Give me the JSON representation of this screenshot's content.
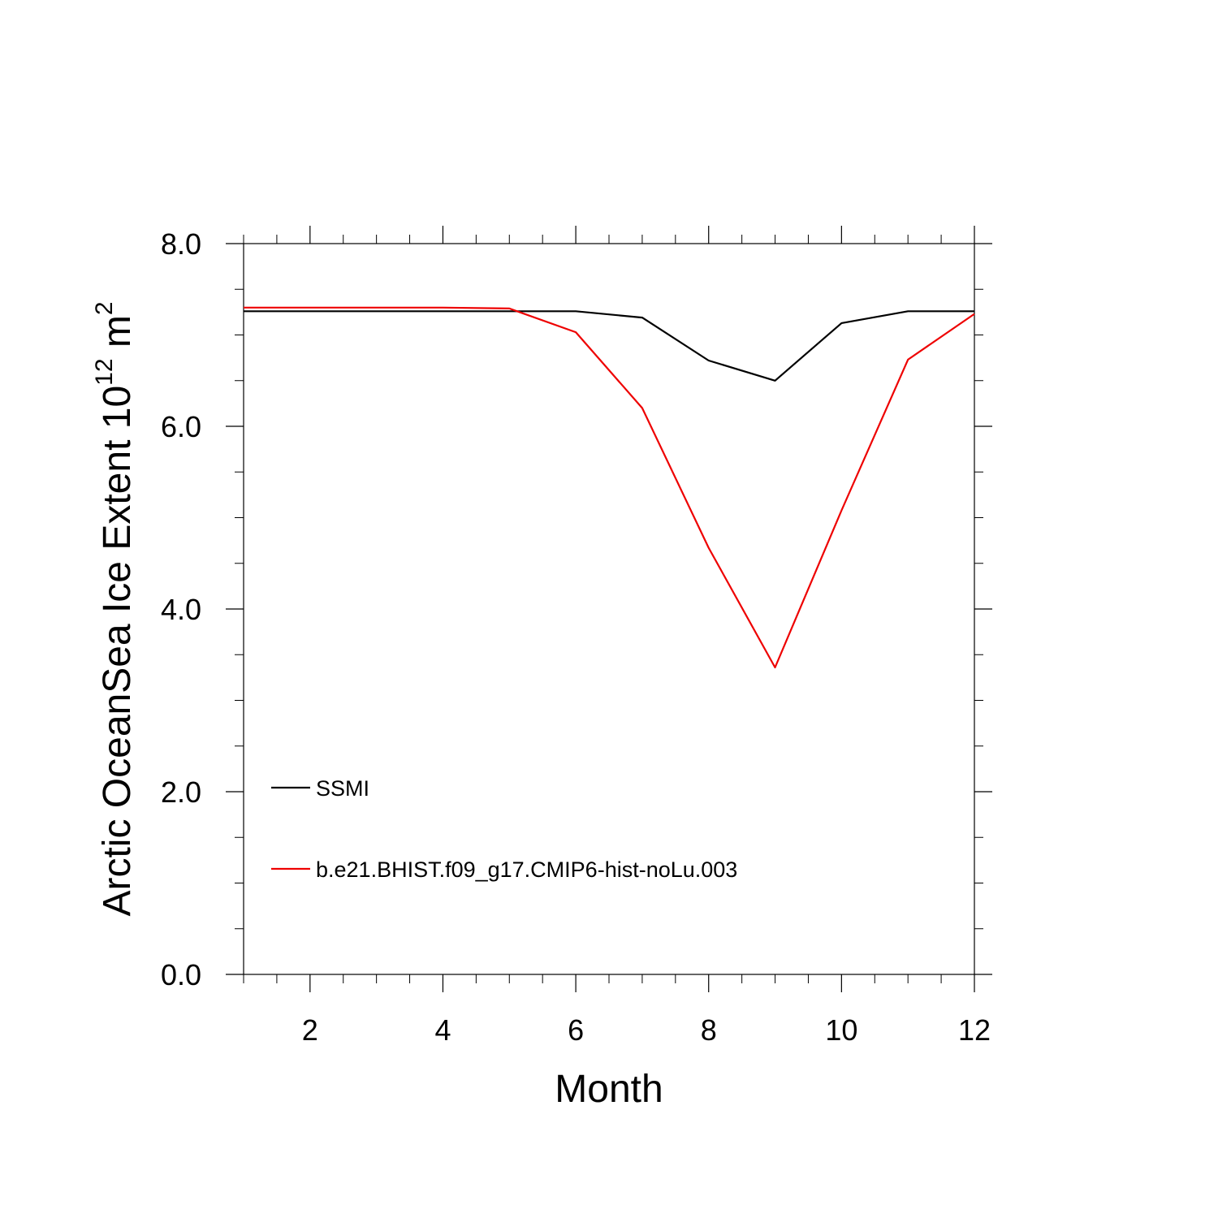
{
  "chart_data": {
    "type": "line",
    "xlabel": "Month",
    "ylabel_main": "Arctic OceanSea Ice Extent 10",
    "ylabel_exp": "12",
    "ylabel_unit": " m",
    "ylabel_unit_exp": "2",
    "xlim": [
      1,
      12
    ],
    "ylim": [
      0,
      8
    ],
    "x_ticks": [
      2,
      4,
      6,
      8,
      10,
      12
    ],
    "x_tick_labels": [
      "2",
      "4",
      "6",
      "8",
      "10",
      "12"
    ],
    "y_ticks": [
      0,
      2,
      4,
      6,
      8
    ],
    "y_tick_labels": [
      "0.0",
      "2.0",
      "4.0",
      "6.0",
      "8.0"
    ],
    "grid": false,
    "legend_position": "lower-left",
    "x": [
      1,
      2,
      3,
      4,
      5,
      6,
      7,
      8,
      9,
      10,
      11,
      12
    ],
    "series": [
      {
        "name": "SSMI",
        "color": "#000000",
        "values": [
          7.26,
          7.26,
          7.26,
          7.26,
          7.26,
          7.26,
          7.19,
          6.72,
          6.5,
          7.13,
          7.26,
          7.26
        ]
      },
      {
        "name": "b.e21.BHIST.f09_g17.CMIP6-hist-noLu.003",
        "color": "#ee0000",
        "values": [
          7.3,
          7.3,
          7.3,
          7.3,
          7.29,
          7.03,
          6.2,
          4.67,
          3.36,
          5.08,
          6.73,
          7.23
        ]
      }
    ]
  }
}
